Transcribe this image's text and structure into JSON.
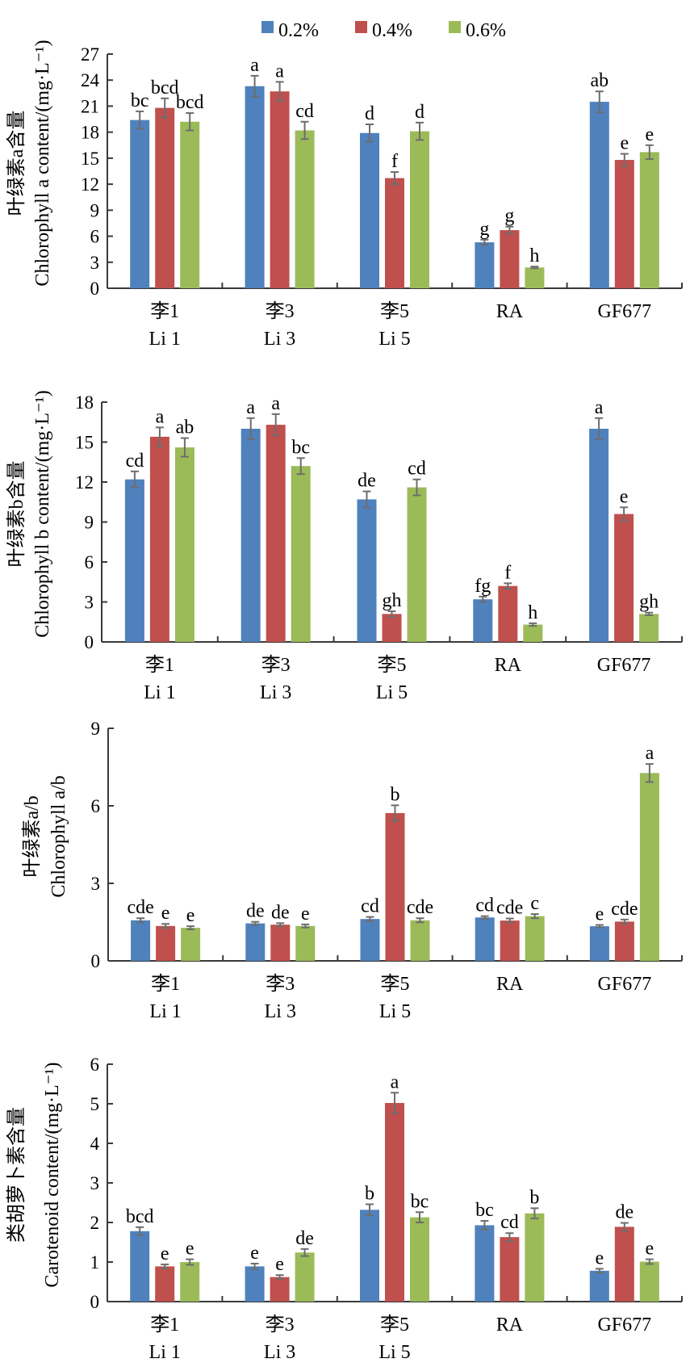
{
  "legend": [
    {
      "name": "0.2%",
      "color": "#4f81bd"
    },
    {
      "name": "0.4%",
      "color": "#c0504d"
    },
    {
      "name": "0.6%",
      "color": "#9bbb59"
    }
  ],
  "chart_data": [
    {
      "type": "bar",
      "title": "",
      "ylabel_cn": "叶绿素a含量",
      "ylabel_en": "Chlorophyll a content/(mg·L⁻¹)",
      "xlabel": "",
      "categories": [
        "李1",
        "李3",
        "李5",
        "RA",
        "GF677"
      ],
      "categories_en": [
        "Li 1",
        "Li 3",
        "Li 5",
        "",
        ""
      ],
      "ylim": [
        0,
        27
      ],
      "yticks": [
        0,
        3,
        6,
        9,
        12,
        15,
        18,
        21,
        24,
        27
      ],
      "series": [
        {
          "name": "0.2%",
          "values": [
            19.4,
            23.3,
            17.9,
            5.3,
            21.5
          ],
          "errors": [
            1.0,
            1.2,
            1.0,
            0.3,
            1.2
          ],
          "labels": [
            "bc",
            "a",
            "d",
            "g",
            "ab"
          ]
        },
        {
          "name": "0.4%",
          "values": [
            20.8,
            22.7,
            12.7,
            6.7,
            14.8
          ],
          "errors": [
            1.1,
            1.1,
            0.7,
            0.4,
            0.7
          ],
          "labels": [
            "bcd",
            "a",
            "f",
            "g",
            "e"
          ]
        },
        {
          "name": "0.6%",
          "values": [
            19.2,
            18.2,
            18.1,
            2.4,
            15.7
          ],
          "errors": [
            1.0,
            1.0,
            1.0,
            0.1,
            0.8
          ],
          "labels": [
            "bcd",
            "cd",
            "d",
            "h",
            "e"
          ]
        }
      ]
    },
    {
      "type": "bar",
      "title": "",
      "ylabel_cn": "叶绿素b含量",
      "ylabel_en": "Chlorophyll b content/(mg·L⁻¹)",
      "xlabel": "",
      "categories": [
        "李1",
        "李3",
        "李5",
        "RA",
        "GF677"
      ],
      "categories_en": [
        "Li 1",
        "Li 3",
        "Li 5",
        "",
        ""
      ],
      "ylim": [
        0,
        18
      ],
      "yticks": [
        0,
        3,
        6,
        9,
        12,
        15,
        18
      ],
      "series": [
        {
          "name": "0.2%",
          "values": [
            12.2,
            16.0,
            10.7,
            3.2,
            16.0
          ],
          "errors": [
            0.6,
            0.8,
            0.6,
            0.2,
            0.8
          ],
          "labels": [
            "cd",
            "a",
            "de",
            "fg",
            "a"
          ]
        },
        {
          "name": "0.4%",
          "values": [
            15.4,
            16.3,
            2.1,
            4.2,
            9.6
          ],
          "errors": [
            0.7,
            0.8,
            0.2,
            0.2,
            0.5
          ],
          "labels": [
            "a",
            "a",
            "gh",
            "f",
            "e"
          ]
        },
        {
          "name": "0.6%",
          "values": [
            14.6,
            13.2,
            11.6,
            1.3,
            2.1
          ],
          "errors": [
            0.7,
            0.6,
            0.6,
            0.1,
            0.1
          ],
          "labels": [
            "ab",
            "bc",
            "cd",
            "h",
            "gh"
          ]
        }
      ]
    },
    {
      "type": "bar",
      "title": "",
      "ylabel_cn": "叶绿素a/b",
      "ylabel_en": "Chlorophyll a/b",
      "xlabel": "",
      "categories": [
        "李1",
        "李3",
        "李5",
        "RA",
        "GF677"
      ],
      "categories_en": [
        "Li 1",
        "Li 3",
        "Li 5",
        "",
        ""
      ],
      "ylim": [
        0,
        9
      ],
      "yticks": [
        0,
        3,
        6,
        9
      ],
      "series": [
        {
          "name": "0.2%",
          "values": [
            1.57,
            1.45,
            1.62,
            1.68,
            1.34
          ],
          "errors": [
            0.08,
            0.06,
            0.08,
            0.05,
            0.05
          ],
          "labels": [
            "cde",
            "de",
            "cd",
            "cd",
            "e"
          ]
        },
        {
          "name": "0.4%",
          "values": [
            1.35,
            1.4,
            5.72,
            1.56,
            1.52
          ],
          "errors": [
            0.08,
            0.06,
            0.3,
            0.08,
            0.08
          ],
          "labels": [
            "e",
            "de",
            "b",
            "cde",
            "cde"
          ]
        },
        {
          "name": "0.6%",
          "values": [
            1.28,
            1.35,
            1.57,
            1.73,
            7.27
          ],
          "errors": [
            0.06,
            0.06,
            0.08,
            0.08,
            0.35
          ],
          "labels": [
            "e",
            "e",
            "cde",
            "c",
            "a"
          ]
        }
      ]
    },
    {
      "type": "bar",
      "title": "",
      "ylabel_cn": "类胡萝卜素含量",
      "ylabel_en": "Carotenoid content/(mg·L⁻¹)",
      "xlabel": "",
      "categories": [
        "李1",
        "李3",
        "李5",
        "RA",
        "GF677"
      ],
      "categories_en": [
        "Li 1",
        "Li 3",
        "Li 5",
        "",
        ""
      ],
      "ylim": [
        0,
        6
      ],
      "yticks": [
        0,
        1,
        2,
        3,
        4,
        5,
        6
      ],
      "series": [
        {
          "name": "0.2%",
          "values": [
            1.78,
            0.89,
            2.32,
            1.93,
            0.78
          ],
          "errors": [
            0.1,
            0.07,
            0.14,
            0.11,
            0.05
          ],
          "labels": [
            "bcd",
            "e",
            "b",
            "bc",
            "e"
          ]
        },
        {
          "name": "0.4%",
          "values": [
            0.89,
            0.62,
            5.02,
            1.63,
            1.89
          ],
          "errors": [
            0.05,
            0.05,
            0.26,
            0.1,
            0.1
          ],
          "labels": [
            "e",
            "e",
            "a",
            "cd",
            "de"
          ]
        },
        {
          "name": "0.6%",
          "values": [
            1.0,
            1.24,
            2.13,
            2.23,
            1.01
          ],
          "errors": [
            0.07,
            0.09,
            0.13,
            0.13,
            0.06
          ],
          "labels": [
            "e",
            "de",
            "bc",
            "b",
            "e"
          ]
        }
      ]
    }
  ]
}
